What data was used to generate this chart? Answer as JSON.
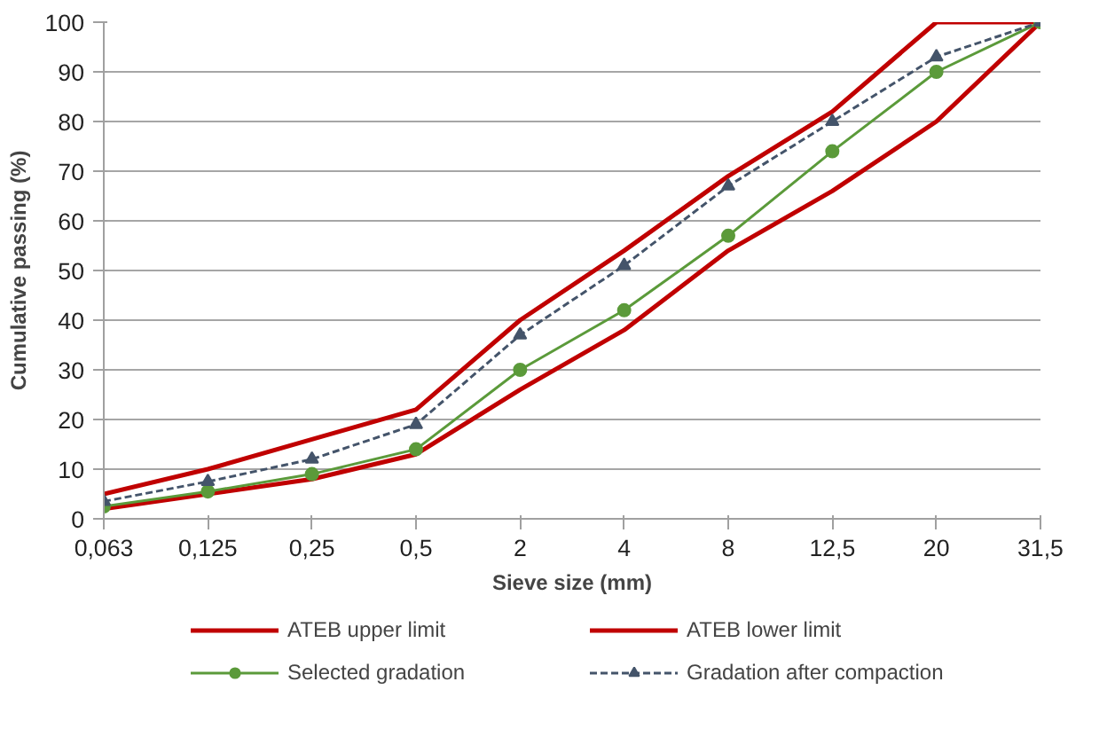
{
  "chart_data": {
    "type": "line",
    "xlabel": "Sieve size (mm)",
    "ylabel": "Cumulative passing (%)",
    "categories": [
      "0,063",
      "0,125",
      "0,25",
      "0,5",
      "2",
      "4",
      "8",
      "12,5",
      "20",
      "31,5"
    ],
    "series": [
      {
        "name": "ATEB upper limit",
        "color": "#c00000",
        "marker": "none",
        "line_style": "solid",
        "values": [
          5,
          10,
          16,
          22,
          40,
          54,
          69,
          82,
          100,
          100
        ]
      },
      {
        "name": "ATEB lower limit",
        "color": "#c00000",
        "marker": "none",
        "line_style": "solid",
        "values": [
          2,
          5,
          8,
          13,
          26,
          38,
          54,
          66,
          80,
          100
        ]
      },
      {
        "name": "Selected gradation",
        "color": "#5b9a3a",
        "marker": "circle",
        "line_style": "solid",
        "values": [
          2.5,
          5.5,
          9,
          14,
          30,
          42,
          57,
          74,
          90,
          100
        ]
      },
      {
        "name": "Gradation after compaction",
        "color": "#44546a",
        "marker": "triangle",
        "line_style": "dashed",
        "values": [
          3.5,
          7.5,
          12,
          19,
          37,
          51,
          67,
          80,
          93,
          100
        ]
      }
    ],
    "ylim": [
      0,
      100
    ],
    "yticks": [
      0,
      10,
      20,
      30,
      40,
      50,
      60,
      70,
      80,
      90,
      100
    ],
    "grid": "y",
    "legend": "bottom"
  }
}
